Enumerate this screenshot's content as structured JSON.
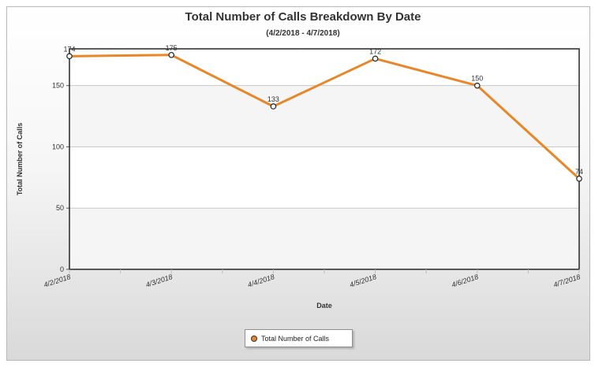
{
  "chart_data": {
    "type": "line",
    "title": "Total Number of Calls Breakdown By Date",
    "subtitle": "(4/2/2018 - 4/7/2018)",
    "xlabel": "Date",
    "ylabel": "Total Number of Calls",
    "categories": [
      "4/2/2018",
      "4/3/2018",
      "4/4/2018",
      "4/5/2018",
      "4/6/2018",
      "4/7/2018"
    ],
    "series": [
      {
        "name": "Total Number of Calls",
        "values": [
          174,
          175,
          133,
          172,
          150,
          74
        ],
        "color": "#e8862a"
      }
    ],
    "ylim": [
      0,
      180
    ],
    "yticks": [
      0,
      50,
      100,
      150
    ],
    "grid": true,
    "legend_position": "bottom-center"
  }
}
